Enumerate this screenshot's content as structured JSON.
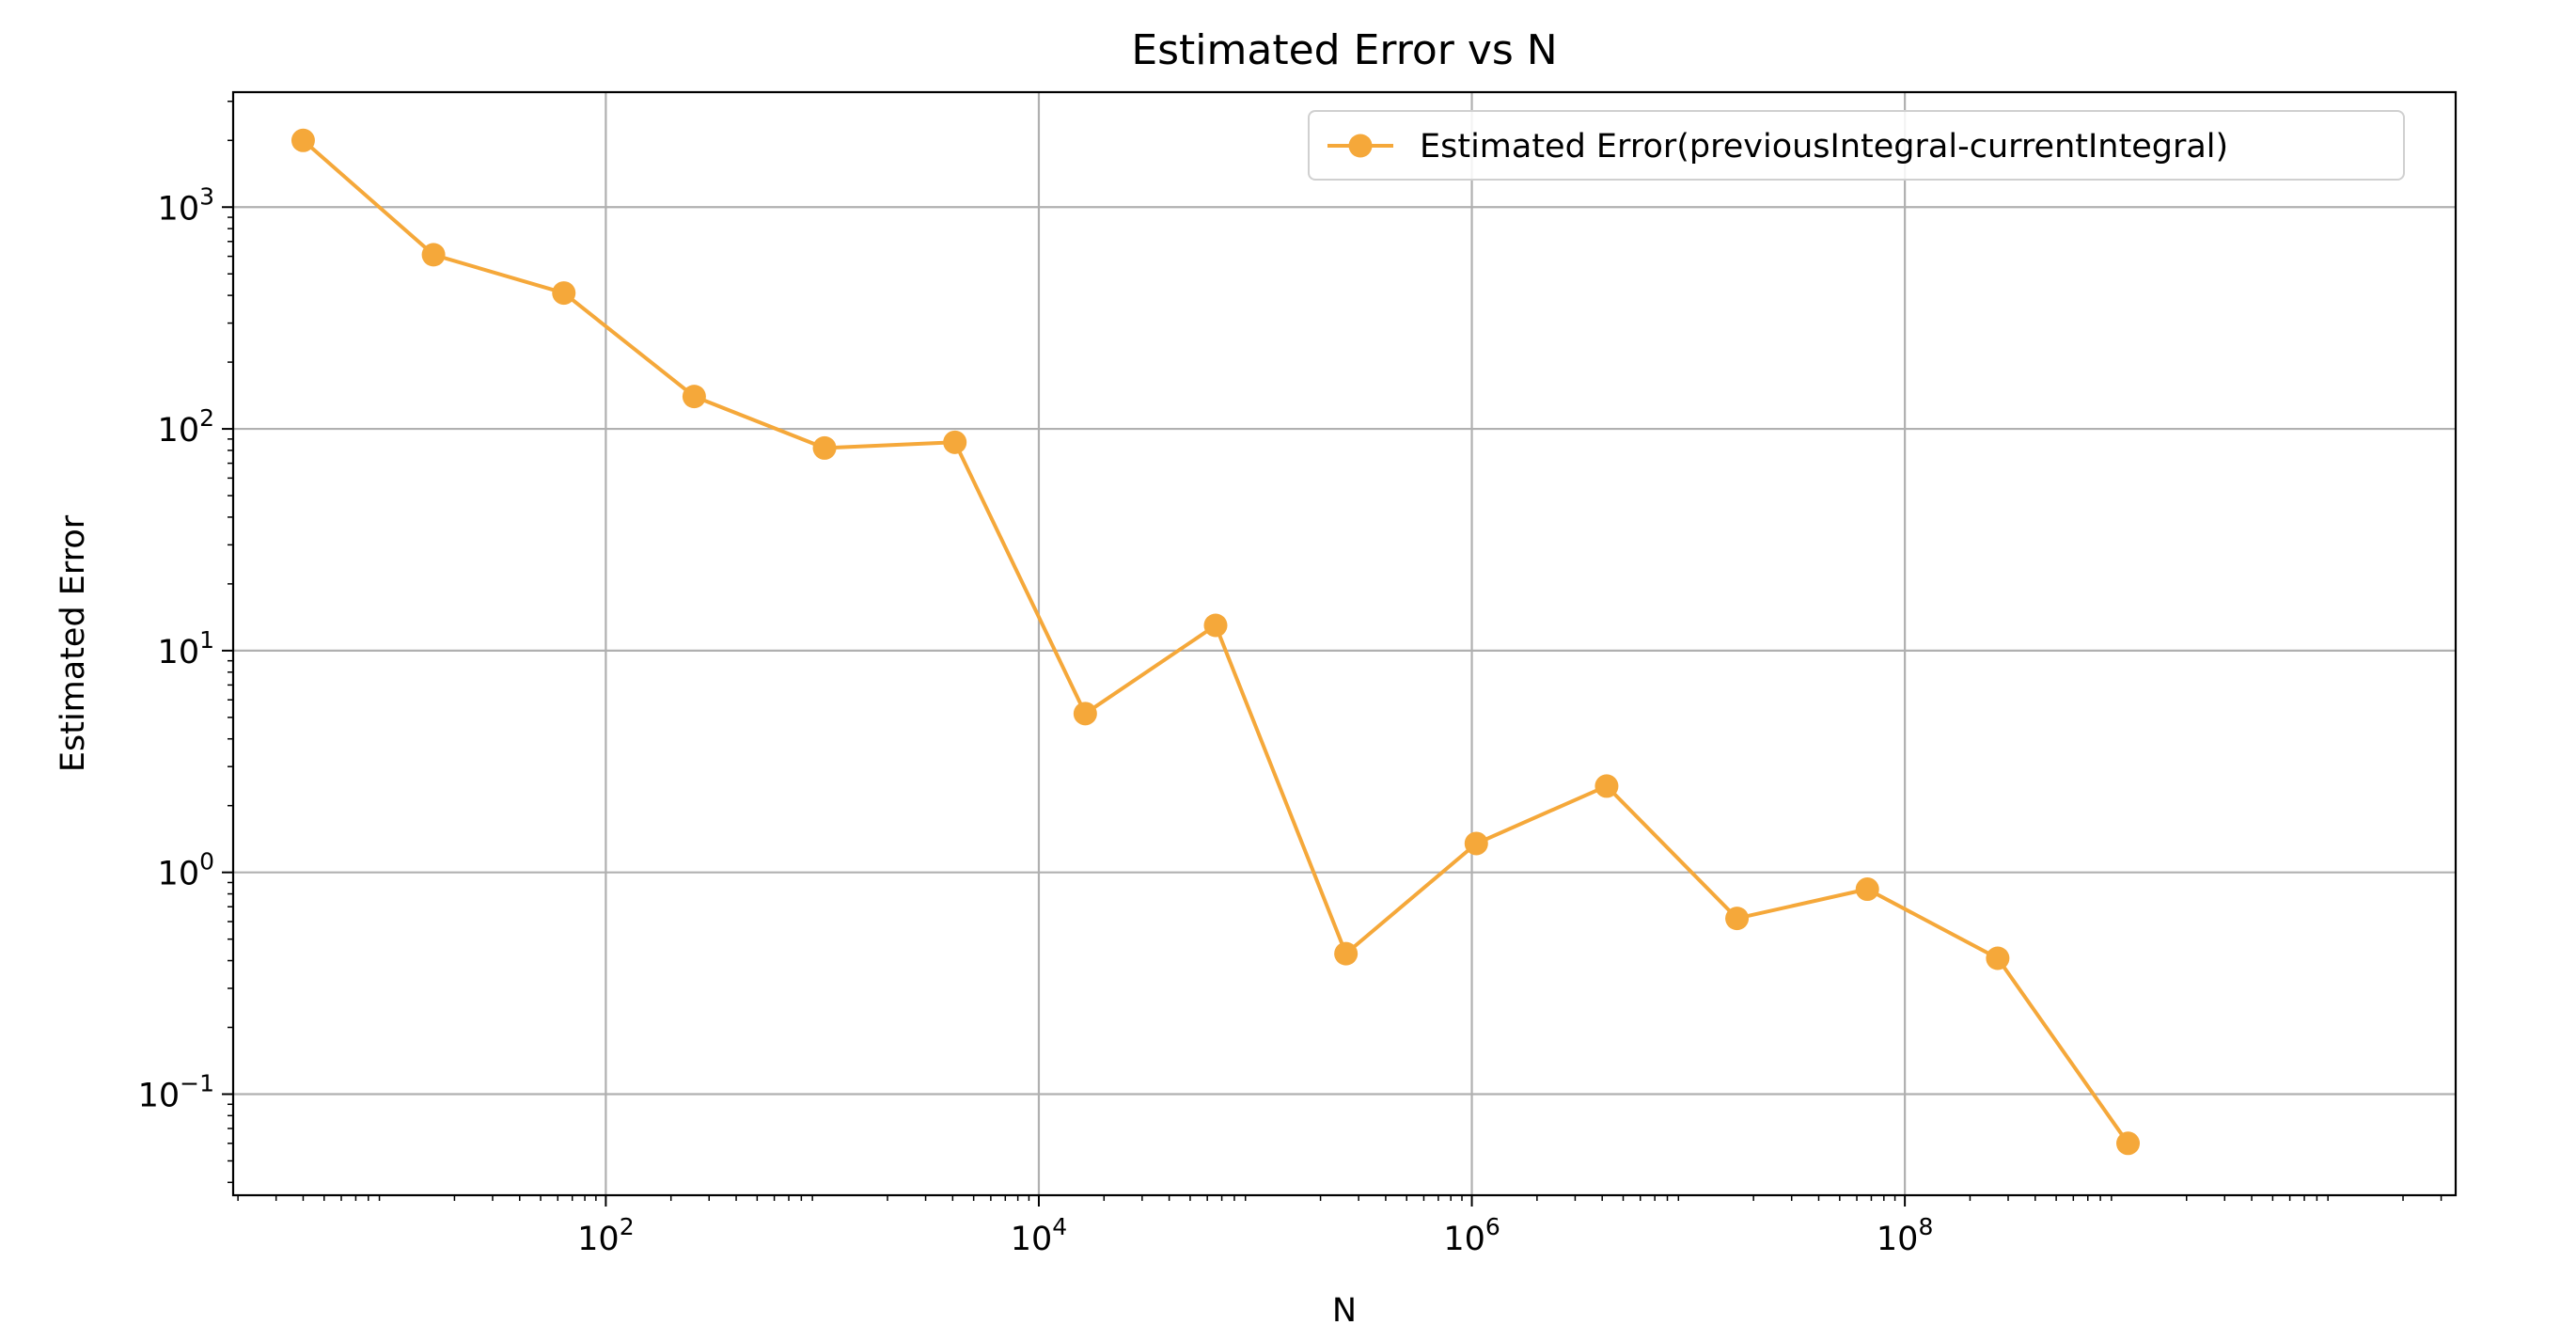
{
  "chart_data": {
    "type": "line",
    "title": "Estimated Error vs N",
    "xlabel": "N",
    "ylabel": "Estimated Error",
    "xscale": "log",
    "yscale": "log",
    "xlim": [
      1.9,
      35000000000
    ],
    "ylim": [
      0.035,
      3300
    ],
    "grid": true,
    "legend_position": "upper right",
    "colors": {
      "line": "#F5A83A",
      "grid": "#B0B0B0",
      "axes": "#000000"
    },
    "x_ticks": [
      {
        "value": 100,
        "base": "10",
        "exp": "2"
      },
      {
        "value": 10000,
        "base": "10",
        "exp": "4"
      },
      {
        "value": 1000000,
        "base": "10",
        "exp": "6"
      },
      {
        "value": 100000000,
        "base": "10",
        "exp": "8"
      }
    ],
    "y_ticks": [
      {
        "value": 0.1,
        "base": "10",
        "exp": "−1"
      },
      {
        "value": 1,
        "base": "10",
        "exp": "0"
      },
      {
        "value": 10,
        "base": "10",
        "exp": "1"
      },
      {
        "value": 100,
        "base": "10",
        "exp": "2"
      },
      {
        "value": 1000,
        "base": "10",
        "exp": "3"
      }
    ],
    "series": [
      {
        "name": "Estimated Error(previousIntegral-currentIntegral)",
        "marker": "circle",
        "x": [
          4,
          16,
          64,
          256,
          1024,
          4096,
          16384,
          65536,
          262144,
          1048576,
          4194304,
          16777216,
          67108864,
          268435456,
          1073741824
        ],
        "y": [
          2000,
          610,
          410,
          140,
          82,
          87,
          5.2,
          13,
          0.43,
          1.35,
          2.45,
          0.62,
          0.84,
          0.41,
          0.06
        ]
      }
    ]
  }
}
